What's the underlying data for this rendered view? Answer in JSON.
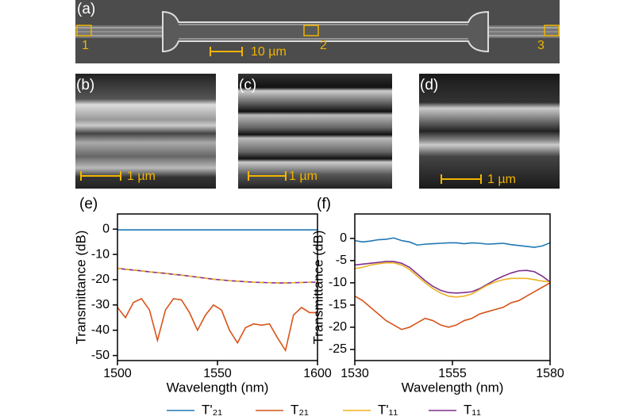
{
  "images": {
    "a": {
      "label": "(a)",
      "markers": [
        "1",
        "2",
        "3"
      ],
      "scale": "10 µm"
    },
    "b": {
      "label": "(b)",
      "scale": "1 µm"
    },
    "c": {
      "label": "(c)",
      "scale": "1 µm"
    },
    "d": {
      "label": "(d)",
      "scale": "1 µm"
    }
  },
  "legend": [
    {
      "name": "T'₂₁",
      "color": "#1f77b4"
    },
    {
      "name": "T₂₁",
      "color": "#d95319"
    },
    {
      "name": "T'₁₁",
      "color": "#edb120"
    },
    {
      "name": "T₁₁",
      "color": "#7e2f8e"
    }
  ],
  "chart_data": [
    {
      "type": "line",
      "title": "(e)",
      "x_label": "Wavelength (nm)",
      "y_label": "Transmittance (dB)",
      "x": [
        1500,
        1504,
        1508,
        1512,
        1516,
        1520,
        1524,
        1528,
        1532,
        1536,
        1540,
        1544,
        1548,
        1552,
        1556,
        1560,
        1564,
        1568,
        1572,
        1576,
        1580,
        1584,
        1588,
        1592,
        1596,
        1600
      ],
      "xlim": [
        1500,
        1600
      ],
      "xticks": [
        1500,
        1550,
        1600
      ],
      "ylim": [
        -52,
        6
      ],
      "yticks": [
        0,
        -10,
        -20,
        -30,
        -40,
        -50
      ],
      "series": [
        {
          "values": [
            -0.3,
            -0.3,
            -0.3,
            -0.3,
            -0.3,
            -0.3,
            -0.3,
            -0.3,
            -0.3,
            -0.3,
            -0.3,
            -0.3,
            -0.3,
            -0.3,
            -0.3,
            -0.3,
            -0.3,
            -0.3,
            -0.3,
            -0.3,
            -0.3,
            -0.3,
            -0.3,
            -0.3,
            -0.3,
            -0.3
          ]
        },
        {
          "values": [
            -31,
            -35,
            -29,
            -27.5,
            -32,
            -44,
            -32,
            -27.5,
            -28,
            -33,
            -40,
            -34,
            -30,
            -32,
            -40,
            -45,
            -39,
            -37.5,
            -38,
            -37.5,
            -43,
            -48,
            -34,
            -31,
            -33,
            -33
          ]
        },
        {
          "values": [
            -15.5,
            -15.9,
            -16.2,
            -16.5,
            -16.9,
            -17.2,
            -17.5,
            -17.9,
            -18.2,
            -18.6,
            -19,
            -19.4,
            -19.8,
            -20.1,
            -20.4,
            -20.6,
            -20.8,
            -21,
            -21.1,
            -21.2,
            -21.3,
            -21.3,
            -21.2,
            -21.1,
            -21,
            -21
          ],
          "dashed": true
        },
        {
          "values": [
            -15.5,
            -15.9,
            -16.2,
            -16.5,
            -16.9,
            -17.2,
            -17.5,
            -17.9,
            -18.2,
            -18.6,
            -19,
            -19.4,
            -19.8,
            -20.1,
            -20.4,
            -20.6,
            -20.8,
            -21,
            -21.1,
            -21.2,
            -21.3,
            -21.3,
            -21.2,
            -21.1,
            -21,
            -21
          ]
        }
      ]
    },
    {
      "type": "line",
      "title": "(f)",
      "x_label": "Wavelength (nm)",
      "y_label": "Transmittance (dB)",
      "x": [
        1530,
        1532,
        1534,
        1536,
        1538,
        1540,
        1542,
        1544,
        1546,
        1548,
        1550,
        1552,
        1554,
        1556,
        1558,
        1560,
        1562,
        1564,
        1566,
        1568,
        1570,
        1572,
        1574,
        1576,
        1578,
        1580
      ],
      "xlim": [
        1530,
        1580
      ],
      "xticks": [
        1530,
        1555,
        1580
      ],
      "ylim": [
        -27.5,
        5.5
      ],
      "yticks": [
        0,
        -5,
        -10,
        -15,
        -20,
        -25
      ],
      "series": [
        {
          "values": [
            -0.5,
            -0.8,
            -0.6,
            -0.3,
            -0.2,
            0.1,
            -0.5,
            -0.8,
            -1.5,
            -1.3,
            -1.2,
            -1.1,
            -1,
            -1,
            -1.2,
            -1,
            -1.1,
            -1.3,
            -1.2,
            -1.1,
            -1.4,
            -1.6,
            -1.8,
            -2,
            -1.7,
            -1
          ]
        },
        {
          "values": [
            -13,
            -14,
            -15.5,
            -17,
            -18.5,
            -19.5,
            -20.5,
            -20,
            -19,
            -18,
            -18.5,
            -19.5,
            -20,
            -19.5,
            -18.5,
            -18,
            -17,
            -16.5,
            -16,
            -15.5,
            -14.5,
            -14,
            -13,
            -12,
            -11,
            -10
          ]
        },
        {
          "values": [
            -6.8,
            -6.5,
            -6,
            -5.7,
            -5.5,
            -5.5,
            -6,
            -7,
            -8.5,
            -10,
            -11.3,
            -12.3,
            -13,
            -13.2,
            -13,
            -12.5,
            -11.5,
            -10.5,
            -9.8,
            -9.3,
            -9,
            -9,
            -9,
            -9.3,
            -9.6,
            -9.8
          ]
        },
        {
          "values": [
            -6,
            -5.8,
            -5.6,
            -5.4,
            -5.2,
            -5.2,
            -5.6,
            -6.5,
            -8,
            -9.5,
            -10.8,
            -11.7,
            -12.2,
            -12.3,
            -12.2,
            -12,
            -11.3,
            -10.3,
            -9.3,
            -8.5,
            -7.8,
            -7.3,
            -7.2,
            -7.5,
            -8.5,
            -9.8
          ]
        }
      ]
    }
  ]
}
